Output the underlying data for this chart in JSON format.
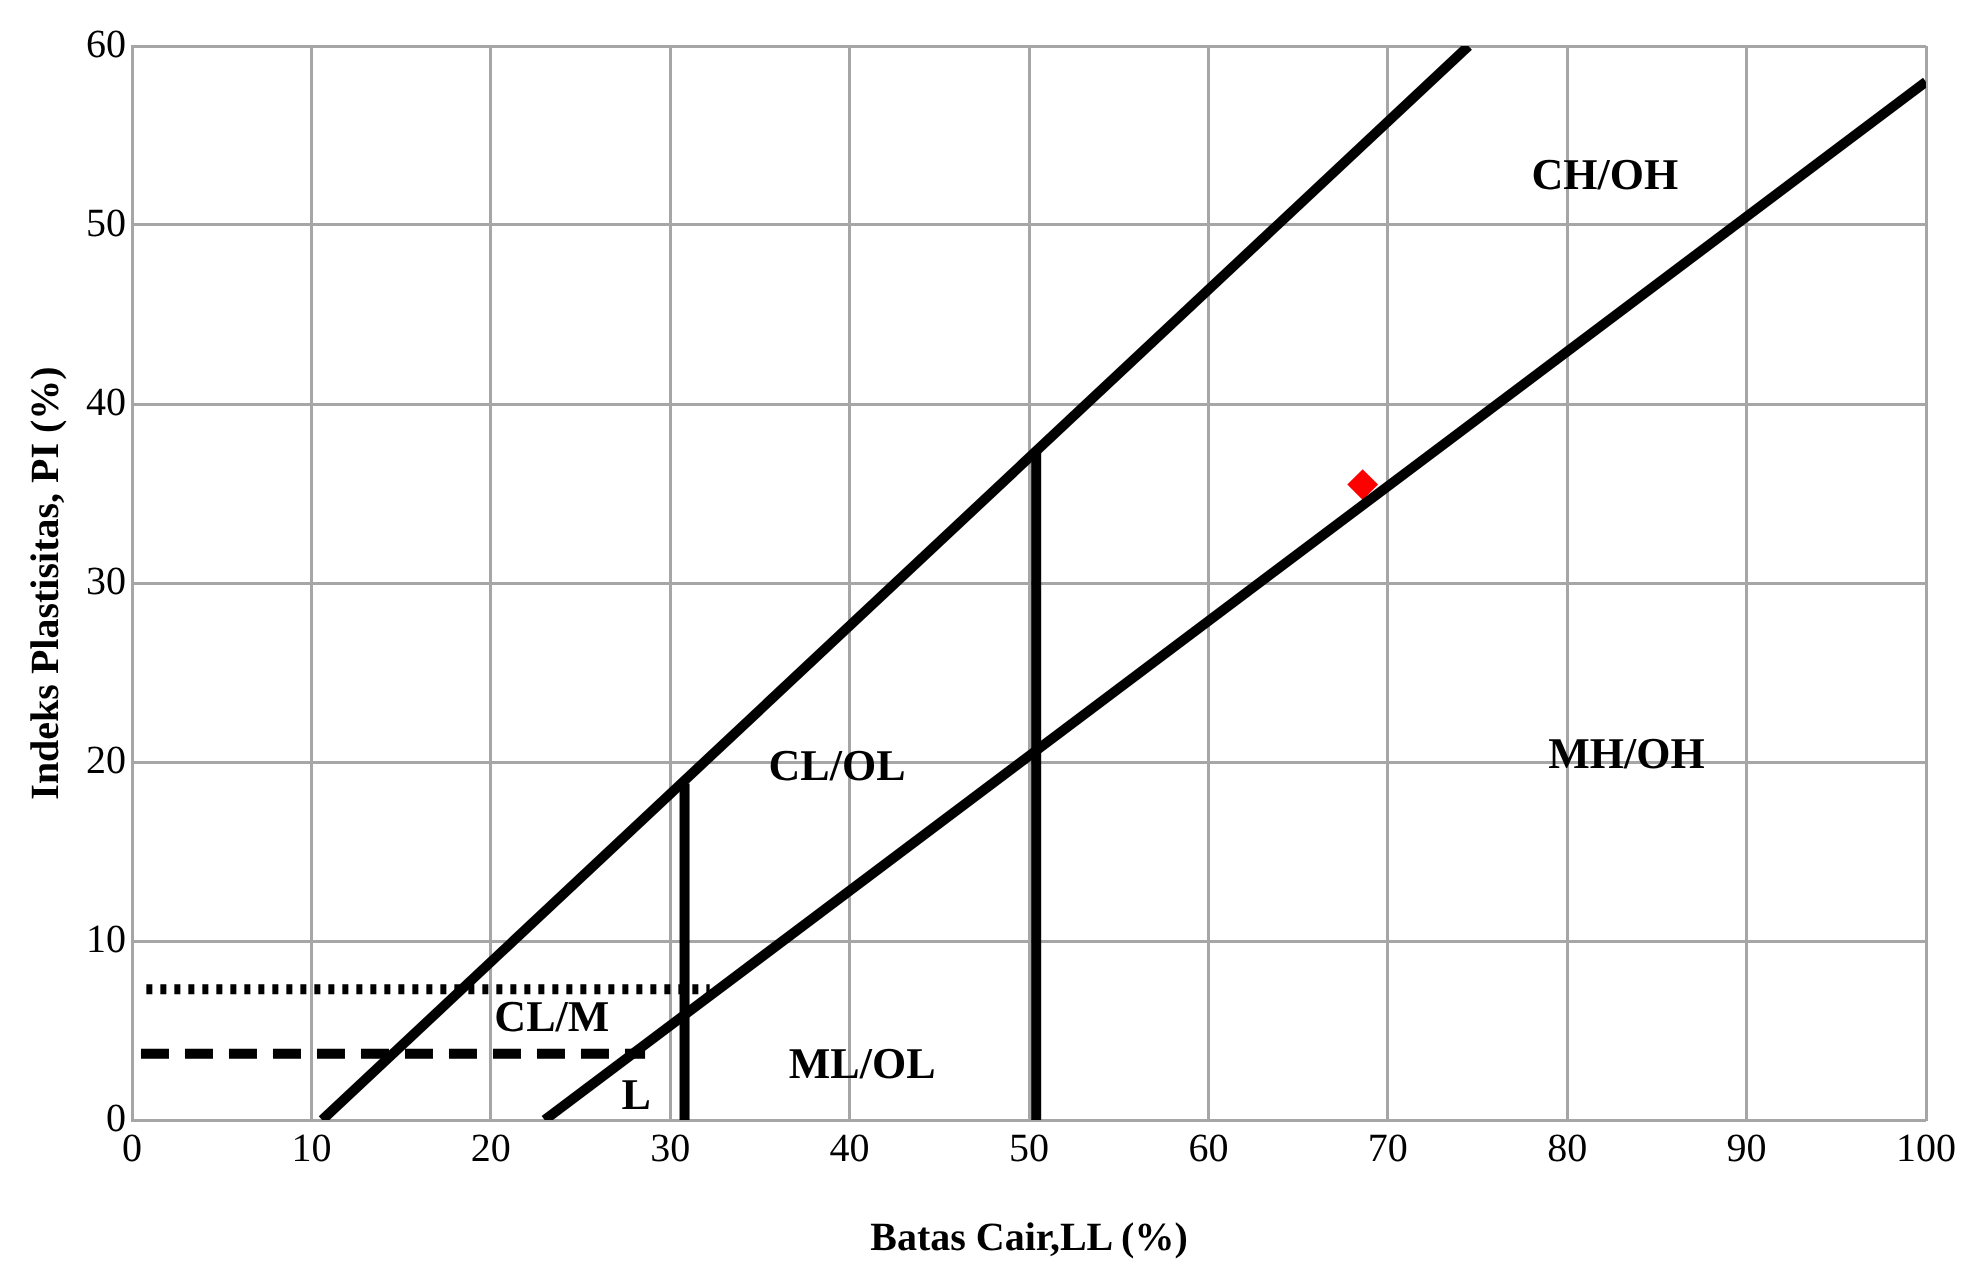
{
  "chart_data": {
    "type": "line",
    "xlabel": "Batas Cair,LL (%)",
    "ylabel": "Indeks Plastisitas, PI (%)",
    "xlim": [
      0,
      100
    ],
    "xticks": [
      0,
      10,
      20,
      30,
      40,
      50,
      60,
      70,
      80,
      90,
      100
    ],
    "ylim": [
      0,
      60
    ],
    "yticks": [
      0,
      10,
      20,
      30,
      40,
      50,
      60
    ],
    "grid": true,
    "legend": false,
    "marker": "none",
    "series": [
      {
        "color": "#000000",
        "x": [
          10.6,
          74.5
        ],
        "values": [
          0,
          60
        ],
        "line_style": "solid"
      },
      {
        "color": "#000000",
        "x": [
          23,
          100
        ],
        "values": [
          0,
          58
        ],
        "line_style": "solid"
      },
      {
        "color": "#000000",
        "x": [
          30.8,
          30.8
        ],
        "values": [
          0,
          18.8
        ],
        "line_style": "solid"
      },
      {
        "color": "#000000",
        "x": [
          50.4,
          50.4
        ],
        "values": [
          0,
          37.3
        ],
        "line_style": "solid"
      },
      {
        "color": "#000000",
        "x": [
          0.8,
          32.2
        ],
        "values": [
          7.3,
          7.3
        ],
        "line_style": "dotted"
      },
      {
        "color": "#000000",
        "x": [
          0.5,
          28.6
        ],
        "values": [
          3.7,
          3.7
        ],
        "line_style": "dashed"
      },
      {
        "type": "scatter",
        "color": "#ff0000",
        "x": [
          68.6
        ],
        "values": [
          35.5
        ],
        "marker": "diamond"
      }
    ],
    "annotations": [
      "CH/OH",
      "CL/OL",
      "MH/OH",
      "ML/OL",
      "CL/M",
      "L"
    ]
  }
}
